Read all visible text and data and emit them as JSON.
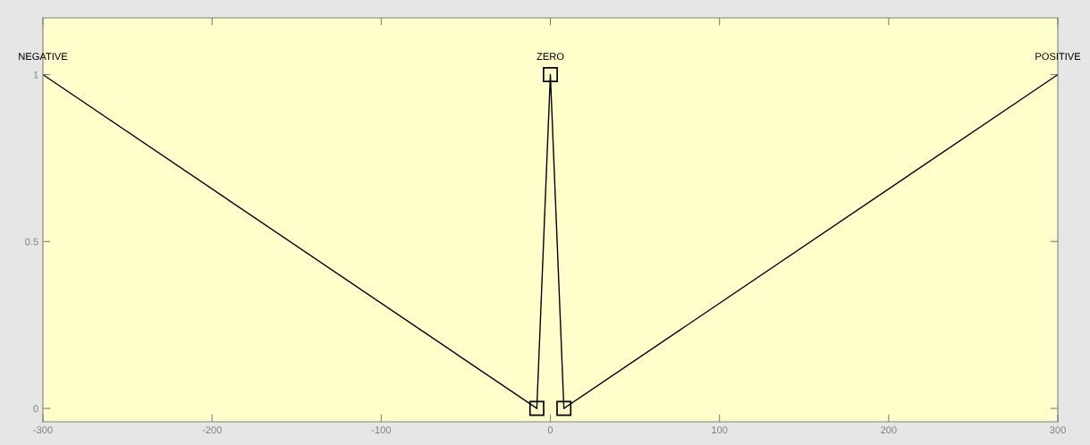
{
  "chart_data": {
    "type": "line",
    "xlim": [
      -300,
      300
    ],
    "ylim": [
      -0.04,
      1.17
    ],
    "xticks": [
      -300,
      -200,
      -100,
      0,
      100,
      200,
      300
    ],
    "yticks": [
      0,
      0.5,
      1
    ],
    "grid": false,
    "legend": false,
    "series": [
      {
        "name": "NEGATIVE",
        "color": "#000000",
        "x": [
          -300,
          -8
        ],
        "values": [
          1,
          0
        ]
      },
      {
        "name": "ZERO",
        "color": "#000000",
        "x": [
          -8,
          0,
          8
        ],
        "values": [
          0,
          1,
          0
        ],
        "marker": "square"
      },
      {
        "name": "POSITIVE",
        "color": "#000000",
        "x": [
          8,
          300
        ],
        "values": [
          0,
          1
        ]
      }
    ]
  }
}
